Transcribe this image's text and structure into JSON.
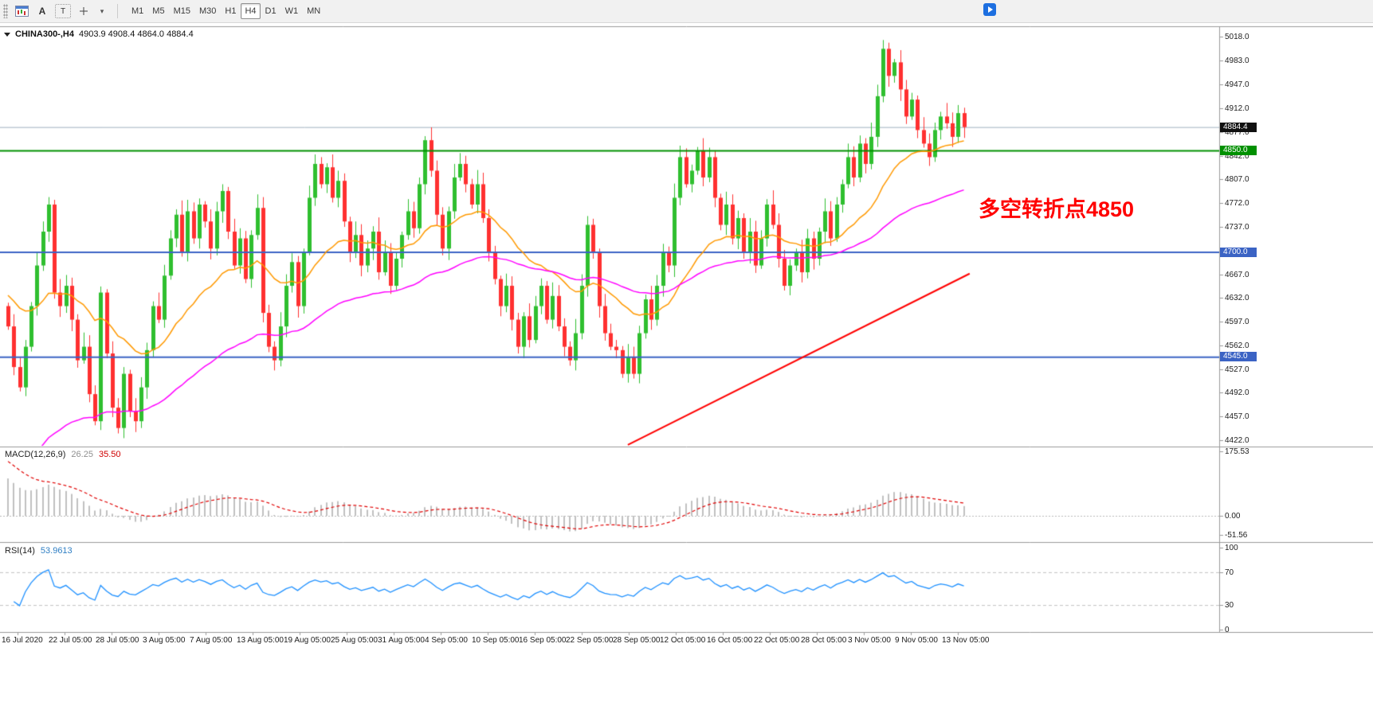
{
  "toolbar": {
    "text_tool_label": "A",
    "textbox_tool_label": "T",
    "dropdown_caret": "▾",
    "timeframes": [
      {
        "label": "M1",
        "active": false
      },
      {
        "label": "M5",
        "active": false
      },
      {
        "label": "M15",
        "active": false
      },
      {
        "label": "M30",
        "active": false
      },
      {
        "label": "H1",
        "active": false
      },
      {
        "label": "H4",
        "active": true
      },
      {
        "label": "D1",
        "active": false
      },
      {
        "label": "W1",
        "active": false
      },
      {
        "label": "MN",
        "active": false
      }
    ]
  },
  "chart": {
    "title_symbol": "CHINA300-,H4",
    "title_ohlc": "4903.9 4908.4 4864.0 4884.4",
    "annotation_text": "多空转折点4850",
    "annotation_color": "#ff0000"
  },
  "price_scale": {
    "labels": [
      "5018.0",
      "4983.0",
      "4947.0",
      "4912.0",
      "4877.0",
      "4842.0",
      "4807.0",
      "4772.0",
      "4737.0",
      "4702.0",
      "4667.0",
      "4632.0",
      "4597.0",
      "4562.0",
      "4527.0",
      "4492.0",
      "4457.0",
      "4422.0"
    ],
    "badges": [
      {
        "text": "4884.4",
        "price": 4884.4,
        "bg": "#111111"
      },
      {
        "text": "4850.0",
        "price": 4850.0,
        "bg": "#009000"
      },
      {
        "text": "4700.0",
        "price": 4700.0,
        "bg": "#3b63c4"
      },
      {
        "text": "4545.0",
        "price": 4545.0,
        "bg": "#3b63c4"
      }
    ]
  },
  "date_axis": {
    "labels": [
      "16 Jul 2020",
      "22 Jul 05:00",
      "28 Jul 05:00",
      "3 Aug 05:00",
      "7 Aug 05:00",
      "13 Aug 05:00",
      "19 Aug 05:00",
      "25 Aug 05:00",
      "31 Aug 05:00",
      "4 Sep 05:00",
      "10 Sep 05:00",
      "16 Sep 05:00",
      "22 Sep 05:00",
      "28 Sep 05:00",
      "12 Oct 05:00",
      "16 Oct 05:00",
      "22 Oct 05:00",
      "28 Oct 05:00",
      "3 Nov 05:00",
      "9 Nov 05:00",
      "13 Nov 05:00"
    ]
  },
  "macd_panel": {
    "name": "MACD(12,26,9)",
    "main_value": "26.25",
    "signal_value": "35.50",
    "scale": [
      "175.53",
      "0.00",
      "-51.56"
    ],
    "histogram_color": "#c0c0c0",
    "signal_color": "#e00000"
  },
  "rsi_panel": {
    "name": "RSI(14)",
    "value": "53.9613",
    "scale": [
      "100",
      "70",
      "30",
      "0"
    ],
    "levels": [
      70,
      30
    ],
    "line_color": "#1E90FF"
  },
  "chart_data": {
    "type": "candlestick",
    "symbol": "CHINA300-",
    "timeframe": "H4",
    "current_ohlc": {
      "open": 4903.9,
      "high": 4908.4,
      "low": 4864.0,
      "close": 4884.4
    },
    "price_range": {
      "min": 4422.0,
      "max": 5018.0
    },
    "bull_color": "#2fbf2f",
    "bear_color": "#ff3030",
    "first_open": 4620,
    "closes": [
      4590,
      4530,
      4500,
      4560,
      4620,
      4680,
      4730,
      4770,
      4640,
      4620,
      4650,
      4600,
      4540,
      4560,
      4490,
      4450,
      4640,
      4550,
      4470,
      4440,
      4520,
      4465,
      4450,
      4500,
      4555,
      4620,
      4600,
      4665,
      4720,
      4755,
      4700,
      4760,
      4720,
      4770,
      4745,
      4705,
      4760,
      4790,
      4730,
      4680,
      4720,
      4660,
      4725,
      4765,
      4610,
      4560,
      4540,
      4590,
      4650,
      4685,
      4620,
      4700,
      4780,
      4830,
      4800,
      4825,
      4780,
      4805,
      4745,
      4700,
      4725,
      4680,
      4705,
      4730,
      4670,
      4700,
      4650,
      4690,
      4725,
      4760,
      4735,
      4800,
      4865,
      4820,
      4755,
      4705,
      4760,
      4810,
      4830,
      4800,
      4770,
      4800,
      4750,
      4700,
      4660,
      4620,
      4650,
      4600,
      4560,
      4605,
      4570,
      4620,
      4650,
      4600,
      4635,
      4590,
      4560,
      4540,
      4580,
      4650,
      4740,
      4700,
      4620,
      4580,
      4560,
      4555,
      4520,
      4545,
      4520,
      4580,
      4630,
      4600,
      4650,
      4700,
      4680,
      4780,
      4840,
      4800,
      4820,
      4850,
      4810,
      4840,
      4780,
      4740,
      4770,
      4720,
      4750,
      4700,
      4730,
      4680,
      4720,
      4770,
      4740,
      4690,
      4650,
      4680,
      4700,
      4670,
      4720,
      4690,
      4730,
      4760,
      4720,
      4770,
      4800,
      4840,
      4810,
      4860,
      4830,
      4870,
      4930,
      5000,
      4960,
      4980,
      4940,
      4900,
      4925,
      4880,
      4860,
      4840,
      4880,
      4900,
      4890,
      4870,
      4905,
      4884.4
    ],
    "h_lines": [
      {
        "price": 4884.4,
        "color": "#9fb0bf",
        "width": 1,
        "role": "last-price"
      },
      {
        "price": 4850.0,
        "color": "#009000",
        "width": 2,
        "role": "pivot"
      },
      {
        "price": 4700.0,
        "color": "#3b63c4",
        "width": 2,
        "role": "support"
      },
      {
        "price": 4545.0,
        "color": "#3b63c4",
        "width": 2,
        "role": "support"
      }
    ],
    "trend_line": {
      "from_bar": 107,
      "from_price": 4415,
      "to_bar": 166,
      "to_price": 4668,
      "color": "#ff0000",
      "width": 2
    },
    "moving_averages": [
      {
        "period": 24,
        "color": "#ff9900",
        "seed": 4640
      },
      {
        "period": 66,
        "color": "#ff00ff",
        "seed": 4370
      }
    ],
    "macd": {
      "fast": 12,
      "slow": 26,
      "signal": 9,
      "seeds": {
        "fast": 4590,
        "slow": 4480,
        "signal": 160
      },
      "range": {
        "max": 175.53,
        "min": -51.56
      }
    },
    "rsi": {
      "period": 14
    }
  }
}
